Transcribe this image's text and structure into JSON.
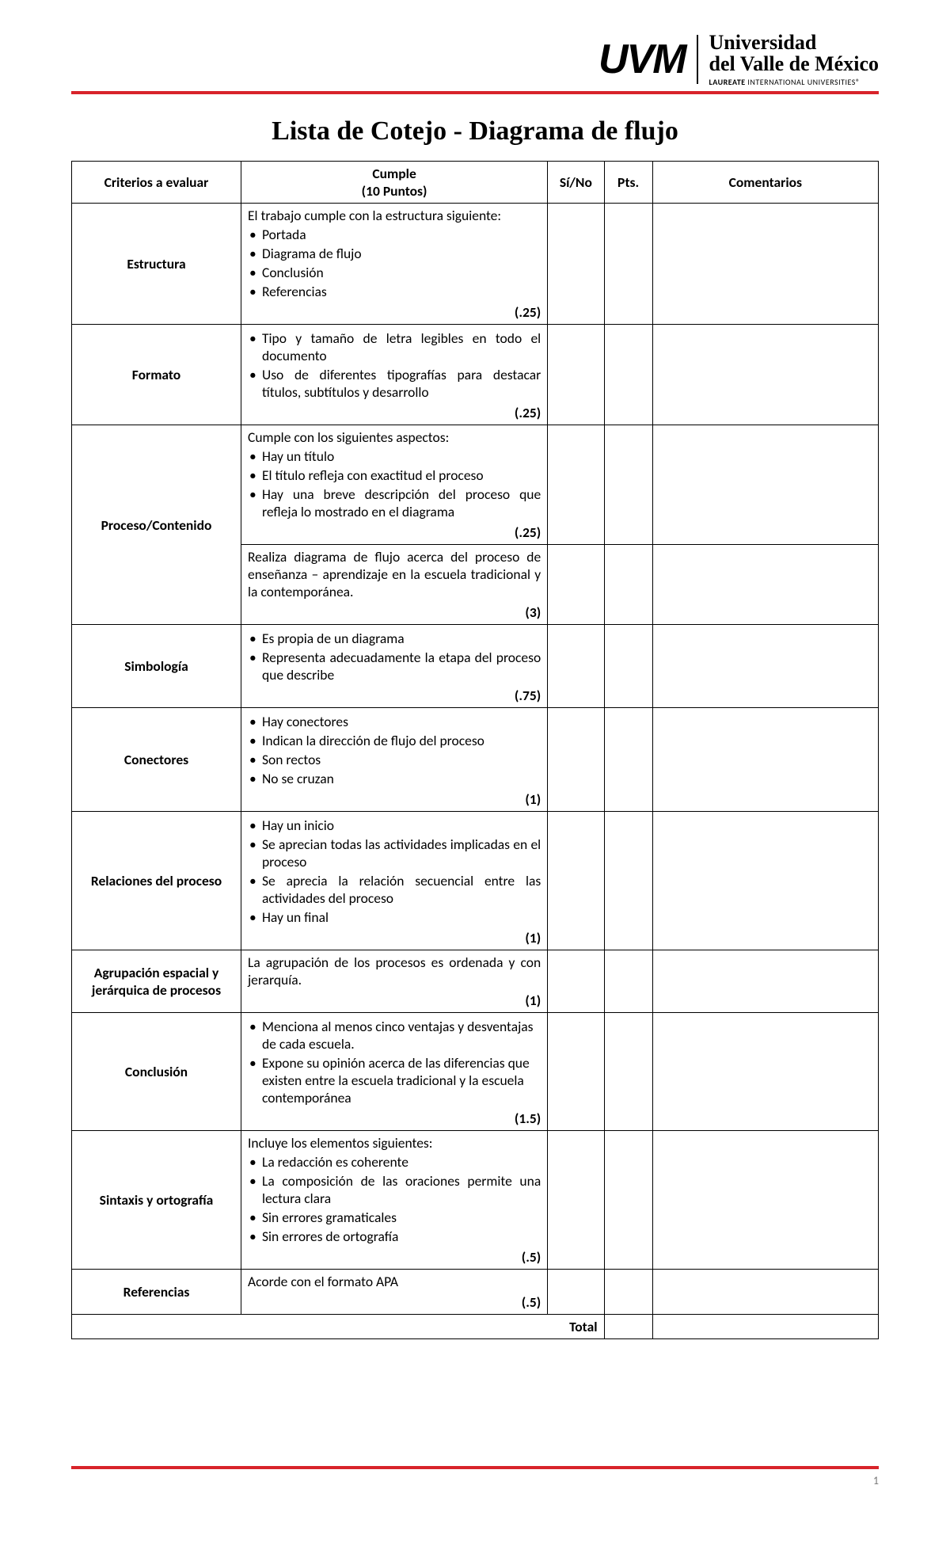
{
  "header": {
    "logo_text": "UVM",
    "uni_line1": "Universidad",
    "uni_line2": "del Valle de México",
    "uni_sub_bold": "LAUREATE",
    "uni_sub_rest": " INTERNATIONAL UNIVERSITIES®"
  },
  "colors": {
    "accent_red": "#d8232a"
  },
  "title": "Lista de Cotejo - Diagrama de flujo",
  "table": {
    "headers": {
      "criterios": "Criterios a evaluar",
      "cumple_l1": "Cumple",
      "cumple_l2": "(10 Puntos)",
      "sino": "Sí/No",
      "pts": "Pts.",
      "comentarios": "Comentarios"
    },
    "rows": [
      {
        "crit": "Estructura",
        "intro": "El trabajo cumple con la estructura siguiente:",
        "bullets": [
          "Portada",
          "Diagrama de flujo",
          "Conclusión",
          "Referencias"
        ],
        "pts": "(.25)",
        "justify": false
      },
      {
        "crit": "Formato",
        "intro": "",
        "bullets": [
          "Tipo y tamaño de letra legibles en todo el documento",
          "Uso de diferentes tipografías para destacar títulos, subtítulos y desarrollo"
        ],
        "pts": "(.25)",
        "justify": true
      },
      {
        "crit": "Proceso/Contenido",
        "sub": [
          {
            "intro": "Cumple con los siguientes aspectos:",
            "bullets": [
              "Hay un título",
              "El título refleja con exactitud el proceso",
              "Hay una breve descripción del proceso que refleja lo mostrado en el diagrama"
            ],
            "pts": "(.25)",
            "justify": true
          },
          {
            "text": "Realiza diagrama de flujo acerca del proceso de enseñanza – aprendizaje en la escuela tradicional y la contemporánea.",
            "pts": "(3)",
            "justify": true
          }
        ]
      },
      {
        "crit": "Simbología",
        "intro": "",
        "bullets": [
          "Es propia de un diagrama",
          "Representa adecuadamente la etapa del proceso que describe"
        ],
        "pts": "(.75)",
        "justify": true
      },
      {
        "crit": "Conectores",
        "intro": "",
        "bullets": [
          "Hay conectores",
          "Indican la dirección de flujo del proceso",
          "Son rectos",
          "No se cruzan"
        ],
        "pts": "(1)",
        "justify": false
      },
      {
        "crit": "Relaciones del proceso",
        "intro": "",
        "bullets": [
          "Hay un inicio",
          "Se aprecian todas las actividades implicadas en el proceso",
          "Se aprecia la relación secuencial entre las actividades del proceso",
          "Hay un final"
        ],
        "pts": "(1)",
        "justify": true
      },
      {
        "crit": "Agrupación espacial y jerárquica de procesos",
        "text": "La agrupación de los procesos es ordenada y con jerarquía.",
        "pts": "(1)",
        "justify": true
      },
      {
        "crit": "Conclusión",
        "intro": "",
        "bullets": [
          "Menciona al menos cinco ventajas y desventajas de cada escuela.",
          "Expone su opinión acerca de las diferencias que existen entre la escuela tradicional y la escuela contemporánea"
        ],
        "pts": "(1.5)",
        "justify": false
      },
      {
        "crit": "Sintaxis y ortografía",
        "intro": "Incluye los elementos siguientes:",
        "bullets": [
          "La redacción es coherente",
          "La composición de las oraciones permite una lectura clara",
          "Sin errores gramaticales",
          "Sin errores de ortografía"
        ],
        "pts": "(.5)",
        "justify": true
      },
      {
        "crit": "Referencias",
        "text": "Acorde con el formato APA",
        "pts": "(.5)",
        "justify": false
      }
    ],
    "total_label": "Total"
  },
  "page_number": "1"
}
